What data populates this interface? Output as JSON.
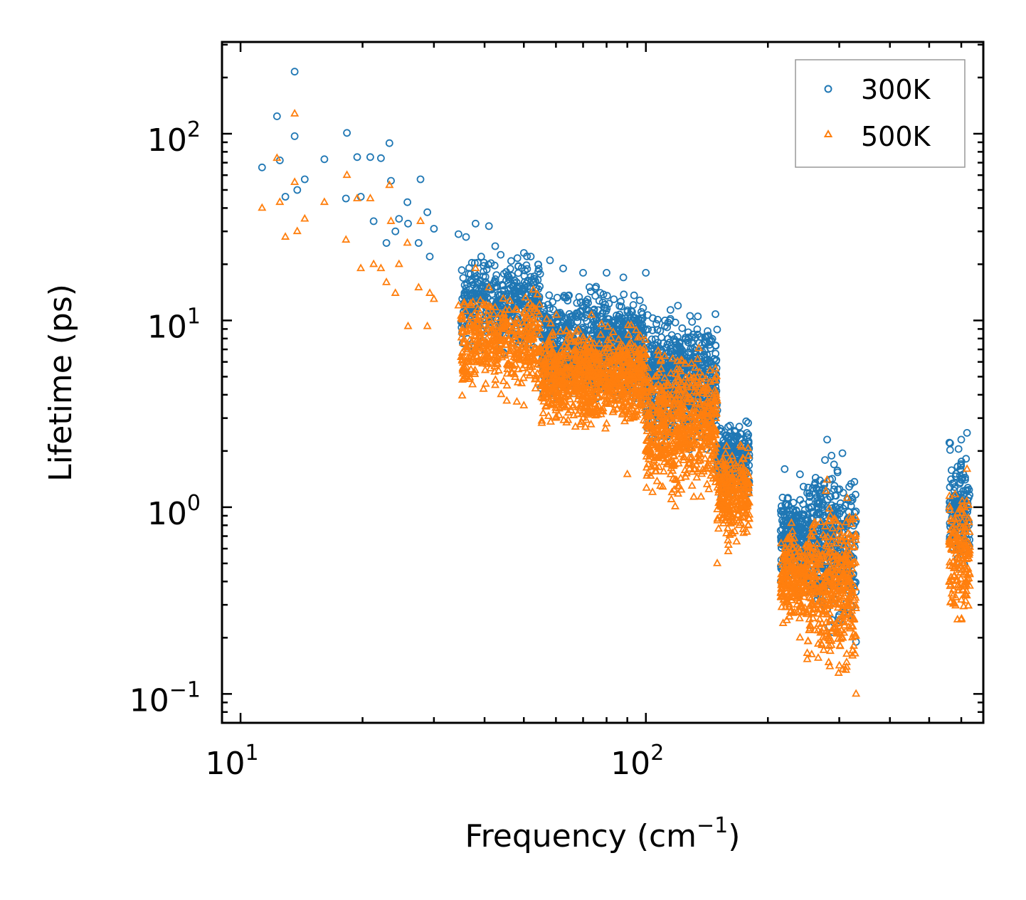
{
  "chart_data": {
    "type": "scatter",
    "title": "",
    "xlabel": "Frequency (cm",
    "xlabel_sup": "−1",
    "xlabel_close": ")",
    "ylabel": "Lifetime (ps)",
    "xscale": "log",
    "yscale": "log",
    "xlim": [
      9,
      680
    ],
    "ylim": [
      0.07,
      310
    ],
    "x_ticks": [
      {
        "value": 10,
        "base": "10",
        "exp": "1"
      },
      {
        "value": 100,
        "base": "10",
        "exp": "2"
      }
    ],
    "y_ticks": [
      {
        "value": 0.1,
        "base": "10",
        "exp": "−1"
      },
      {
        "value": 1,
        "base": "10",
        "exp": "0"
      },
      {
        "value": 10,
        "base": "10",
        "exp": "1"
      },
      {
        "value": 100,
        "base": "10",
        "exp": "2"
      }
    ],
    "legend_position": "top-right",
    "series": [
      {
        "name": "300K",
        "label": "300K",
        "marker": "circle",
        "color": "#1f77b4",
        "sample_points": [
          [
            11.3,
            66
          ],
          [
            12.3,
            124
          ],
          [
            12.5,
            72
          ],
          [
            12.9,
            46
          ],
          [
            13.6,
            215
          ],
          [
            13.6,
            97
          ],
          [
            13.8,
            50
          ],
          [
            14.4,
            57
          ],
          [
            16.1,
            73
          ],
          [
            18.2,
            45
          ],
          [
            18.3,
            101
          ],
          [
            19.4,
            75
          ],
          [
            19.8,
            46
          ],
          [
            20.9,
            75
          ],
          [
            21.3,
            34
          ],
          [
            22.2,
            74
          ],
          [
            22.9,
            26
          ],
          [
            23.3,
            89
          ],
          [
            23.5,
            56
          ],
          [
            24.1,
            30
          ],
          [
            24.6,
            35
          ],
          [
            25.8,
            43
          ],
          [
            25.9,
            33
          ],
          [
            27.5,
            26
          ],
          [
            27.8,
            57
          ],
          [
            28.9,
            38
          ],
          [
            29.3,
            22
          ],
          [
            30.0,
            31
          ],
          [
            34.5,
            29
          ],
          [
            36.0,
            28
          ],
          [
            38.0,
            33
          ],
          [
            41.0,
            32
          ],
          [
            42.5,
            25
          ],
          [
            50.0,
            23
          ],
          [
            52.0,
            22
          ],
          [
            58.0,
            21
          ],
          [
            62.5,
            19
          ],
          [
            70.0,
            18
          ],
          [
            80.0,
            18
          ],
          [
            88.0,
            17
          ],
          [
            100.0,
            18
          ],
          [
            120.0,
            12
          ],
          [
            140.0,
            6.3
          ],
          [
            150.0,
            3.3
          ],
          [
            170.0,
            2.7
          ],
          [
            220.0,
            1.6
          ],
          [
            240.0,
            1.5
          ],
          [
            280.0,
            2.3
          ],
          [
            320.0,
            0.3
          ],
          [
            330.0,
            0.19
          ],
          [
            600.0,
            2.3
          ],
          [
            620.0,
            2.5
          ]
        ],
        "clusters": [
          {
            "x_range": [
              35,
              55
            ],
            "y_range": [
              6,
              26
            ],
            "count": 420
          },
          {
            "x_range": [
              55,
              100
            ],
            "y_range": [
              3,
              17
            ],
            "count": 900
          },
          {
            "x_range": [
              100,
              150
            ],
            "y_range": [
              1.8,
              13
            ],
            "count": 650
          },
          {
            "x_range": [
              150,
              180
            ],
            "y_range": [
              1.0,
              3.2
            ],
            "count": 260
          },
          {
            "x_range": [
              215,
              250
            ],
            "y_range": [
              0.3,
              1.5
            ],
            "count": 220
          },
          {
            "x_range": [
              250,
              330
            ],
            "y_range": [
              0.18,
              2.3
            ],
            "count": 420
          },
          {
            "x_range": [
              560,
              630
            ],
            "y_range": [
              0.4,
              2.5
            ],
            "count": 160
          }
        ]
      },
      {
        "name": "500K",
        "label": "500K",
        "marker": "triangle",
        "color": "#ff7f0e",
        "sample_points": [
          [
            11.3,
            40
          ],
          [
            12.3,
            74
          ],
          [
            12.5,
            43
          ],
          [
            12.9,
            28
          ],
          [
            13.6,
            128
          ],
          [
            13.6,
            55
          ],
          [
            13.8,
            30
          ],
          [
            14.4,
            35
          ],
          [
            16.1,
            43
          ],
          [
            18.2,
            27
          ],
          [
            18.3,
            60
          ],
          [
            19.4,
            45
          ],
          [
            19.8,
            19
          ],
          [
            20.9,
            45
          ],
          [
            21.3,
            20
          ],
          [
            22.2,
            19
          ],
          [
            22.9,
            16
          ],
          [
            23.3,
            53
          ],
          [
            23.5,
            34
          ],
          [
            24.1,
            14
          ],
          [
            24.6,
            20
          ],
          [
            25.8,
            26
          ],
          [
            25.9,
            9.3
          ],
          [
            27.5,
            15
          ],
          [
            27.8,
            34
          ],
          [
            28.9,
            9.3
          ],
          [
            29.3,
            14
          ],
          [
            30.0,
            13
          ],
          [
            34.5,
            12
          ],
          [
            36.0,
            5.0
          ],
          [
            38.0,
            19
          ],
          [
            41.0,
            15
          ],
          [
            42.5,
            4.5
          ],
          [
            50.0,
            3.5
          ],
          [
            60.0,
            3.0
          ],
          [
            70.0,
            3.0
          ],
          [
            80.0,
            2.8
          ],
          [
            90.0,
            1.5
          ],
          [
            100.0,
            2.0
          ],
          [
            130.0,
            1.3
          ],
          [
            150.0,
            0.5
          ],
          [
            170.0,
            0.8
          ],
          [
            225.0,
            0.4
          ],
          [
            240.0,
            0.2
          ],
          [
            280.0,
            1.4
          ],
          [
            330.0,
            0.1
          ],
          [
            600.0,
            0.25
          ],
          [
            620.0,
            1.6
          ]
        ],
        "clusters": [
          {
            "x_range": [
              35,
              55
            ],
            "y_range": [
              3.5,
              16
            ],
            "count": 420
          },
          {
            "x_range": [
              55,
              100
            ],
            "y_range": [
              2.3,
              11
            ],
            "count": 900
          },
          {
            "x_range": [
              100,
              150
            ],
            "y_range": [
              0.9,
              8
            ],
            "count": 650
          },
          {
            "x_range": [
              150,
              180
            ],
            "y_range": [
              0.55,
              2.5
            ],
            "count": 260
          },
          {
            "x_range": [
              215,
              250
            ],
            "y_range": [
              0.2,
              0.9
            ],
            "count": 220
          },
          {
            "x_range": [
              250,
              330
            ],
            "y_range": [
              0.1,
              1.4
            ],
            "count": 420
          },
          {
            "x_range": [
              560,
              630
            ],
            "y_range": [
              0.2,
              1.6
            ],
            "count": 160
          }
        ]
      }
    ]
  }
}
